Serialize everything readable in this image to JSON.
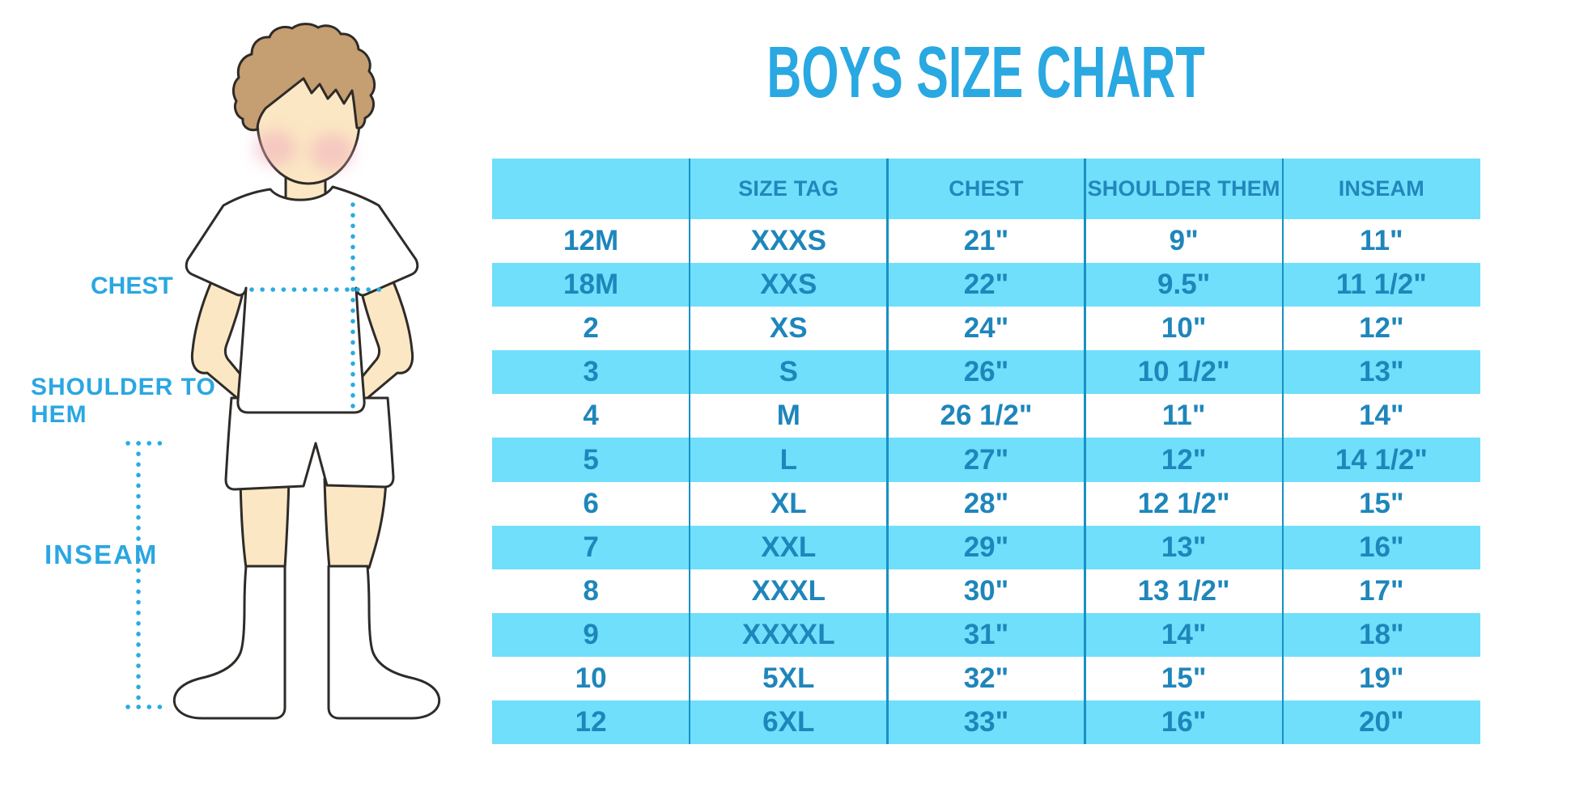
{
  "title": "BOYS SIZE CHART",
  "diagram": {
    "labels": {
      "chest": "CHEST",
      "shoulder_to_hem": "SHOULDER TO HEM",
      "inseam": "INSEAM"
    }
  },
  "chart_data": {
    "type": "table",
    "columns": [
      "",
      "SIZE TAG",
      "CHEST",
      "SHOULDER THEM",
      "INSEAM"
    ],
    "rows": [
      [
        "12M",
        "XXXS",
        "21\"",
        "9\"",
        "11\""
      ],
      [
        "18M",
        "XXS",
        "22\"",
        "9.5\"",
        "11 1/2\""
      ],
      [
        "2",
        "XS",
        "24\"",
        "10\"",
        "12\""
      ],
      [
        "3",
        "S",
        "26\"",
        "10 1/2\"",
        "13\""
      ],
      [
        "4",
        "M",
        "26 1/2\"",
        "11\"",
        "14\""
      ],
      [
        "5",
        "L",
        "27\"",
        "12\"",
        "14 1/2\""
      ],
      [
        "6",
        "XL",
        "28\"",
        "12 1/2\"",
        "15\""
      ],
      [
        "7",
        "XXL",
        "29\"",
        "13\"",
        "16\""
      ],
      [
        "8",
        "XXXL",
        "30\"",
        "13 1/2\"",
        "17\""
      ],
      [
        "9",
        "XXXXL",
        "31\"",
        "14\"",
        "18\""
      ],
      [
        "10",
        "5XL",
        "32\"",
        "15\"",
        "19\""
      ],
      [
        "12",
        "6XL",
        "33\"",
        "16\"",
        "20\""
      ]
    ],
    "title": "BOYS SIZE CHART"
  },
  "colors": {
    "title_blue": "#29A8E1",
    "label_blue": "#2AA7E2",
    "row_cyan": "#70DFFB",
    "row_white": "#FFFFFF",
    "table_text": "#1E86BB",
    "header_text": "#2187BC",
    "separator": "#1891C4",
    "dotted_line": "#29ABE2",
    "hair": "#C59E71",
    "skin": "#FBE7C3",
    "outline": "#2E2B28",
    "cheek": "#F2AFBE"
  }
}
